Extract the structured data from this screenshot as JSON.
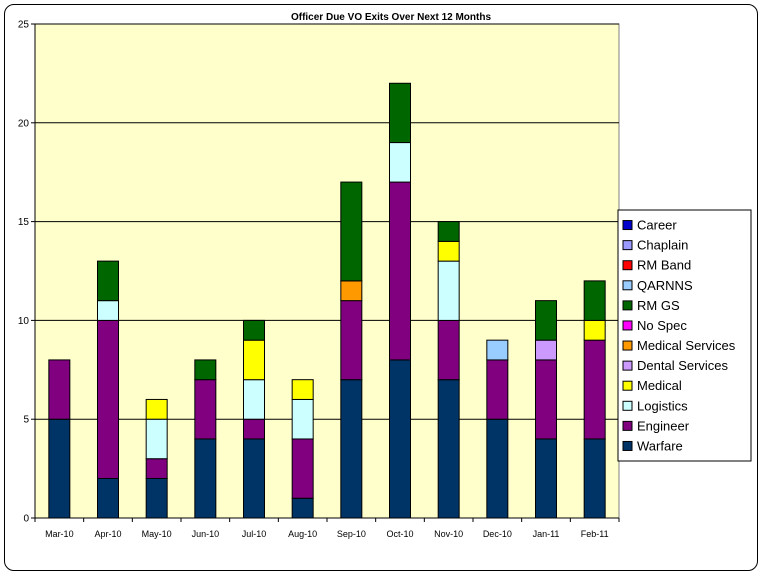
{
  "chart_data": {
    "type": "bar",
    "stacked": true,
    "title": "Officer Due VO Exits Over Next 12 Months",
    "xlabel": "",
    "ylabel": "",
    "ylim": [
      0,
      25
    ],
    "yticks": [
      0,
      5,
      10,
      15,
      20,
      25
    ],
    "grid": true,
    "legend_position": "right",
    "plot_background": "#FFFFCC",
    "categories": [
      "Mar-10",
      "Apr-10",
      "May-10",
      "Jun-10",
      "Jul-10",
      "Aug-10",
      "Sep-10",
      "Oct-10",
      "Nov-10",
      "Dec-10",
      "Jan-11",
      "Feb-11"
    ],
    "series": [
      {
        "name": "Warfare",
        "color": "#003366",
        "values": [
          5,
          2,
          2,
          4,
          4,
          1,
          7,
          8,
          7,
          5,
          4,
          4
        ]
      },
      {
        "name": "Engineer",
        "color": "#800080",
        "values": [
          3,
          8,
          1,
          3,
          1,
          3,
          4,
          9,
          3,
          3,
          4,
          5
        ]
      },
      {
        "name": "Logistics",
        "color": "#CCFFFF",
        "values": [
          0,
          1,
          2,
          0,
          2,
          2,
          0,
          2,
          3,
          0,
          0,
          0
        ]
      },
      {
        "name": "Medical",
        "color": "#FFFF00",
        "values": [
          0,
          0,
          1,
          0,
          2,
          1,
          0,
          0,
          1,
          0,
          0,
          1
        ]
      },
      {
        "name": "Dental Services",
        "color": "#CC99FF",
        "values": [
          0,
          0,
          0,
          0,
          0,
          0,
          0,
          0,
          0,
          0,
          1,
          0
        ]
      },
      {
        "name": "Medical Services",
        "color": "#FF9900",
        "values": [
          0,
          0,
          0,
          0,
          0,
          0,
          1,
          0,
          0,
          0,
          0,
          0
        ]
      },
      {
        "name": "No Spec",
        "color": "#FF00FF",
        "values": [
          0,
          0,
          0,
          0,
          0,
          0,
          0,
          0,
          0,
          0,
          0,
          0
        ]
      },
      {
        "name": "RM GS",
        "color": "#006600",
        "values": [
          0,
          2,
          0,
          1,
          1,
          0,
          5,
          3,
          1,
          0,
          2,
          2
        ]
      },
      {
        "name": "QARNNS",
        "color": "#99CCFF",
        "values": [
          0,
          0,
          0,
          0,
          0,
          0,
          0,
          0,
          0,
          1,
          0,
          0
        ]
      },
      {
        "name": "RM Band",
        "color": "#FF0000",
        "values": [
          0,
          0,
          0,
          0,
          0,
          0,
          0,
          0,
          0,
          0,
          0,
          0
        ]
      },
      {
        "name": "Chaplain",
        "color": "#9999FF",
        "values": [
          0,
          0,
          0,
          0,
          0,
          0,
          0,
          0,
          0,
          0,
          0,
          0
        ]
      },
      {
        "name": "Career",
        "color": "#0000CC",
        "values": [
          0,
          0,
          0,
          0,
          0,
          0,
          0,
          0,
          0,
          0,
          0,
          0
        ]
      }
    ]
  }
}
